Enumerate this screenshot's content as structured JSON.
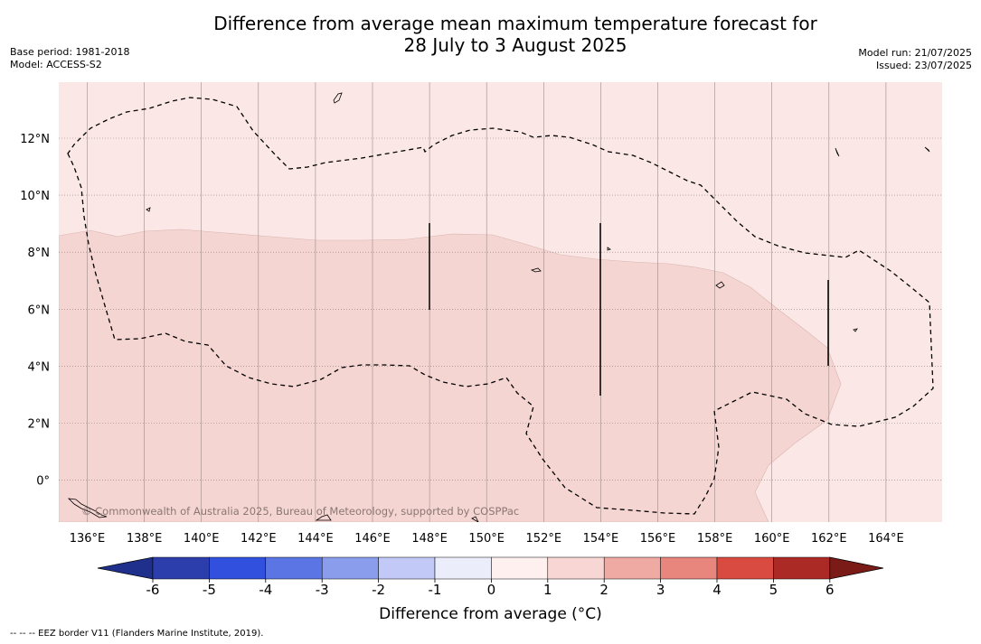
{
  "header": {
    "title_line1": "Difference from average mean maximum temperature forecast for",
    "title_line2": "28 July to 3 August 2025",
    "base_period": "Base period: 1981-2018",
    "model": "Model: ACCESS-S2",
    "model_run": "Model run: 21/07/2025",
    "issued": "Issued: 23/07/2025"
  },
  "map": {
    "lon_ticks": [
      "136°E",
      "138°E",
      "140°E",
      "142°E",
      "144°E",
      "146°E",
      "148°E",
      "150°E",
      "152°E",
      "154°E",
      "156°E",
      "158°E",
      "160°E",
      "162°E",
      "164°E"
    ],
    "lat_ticks": [
      "12°N",
      "10°N",
      "8°N",
      "6°N",
      "4°N",
      "2°N",
      "0°"
    ],
    "watermark": "© Commonwealth of Australia 2025, Bureau of Meteorology, supported by COSPPac",
    "fill_colors": {
      "anomaly_0_1": "#fbe8e6",
      "anomaly_1_2": "#f5d5d2"
    },
    "border_style": "dashed"
  },
  "colorbar": {
    "ticks": [
      "-6",
      "-5",
      "-4",
      "-3",
      "-2",
      "-1",
      "0",
      "1",
      "2",
      "3",
      "4",
      "5",
      "6"
    ],
    "colors": [
      "#1e2f8c",
      "#2c3eac",
      "#3050dd",
      "#5c75e4",
      "#8a9ded",
      "#c2c9f6",
      "#ecedfb",
      "#fdf0ef",
      "#f7d6d3",
      "#efaaa4",
      "#e8857d",
      "#d94a40",
      "#ac2a25",
      "#7a1b18"
    ],
    "label": "Difference from average (°C)"
  },
  "footnote": "--  --  -- EEZ border V11 (Flanders Marine Institute, 2019)."
}
